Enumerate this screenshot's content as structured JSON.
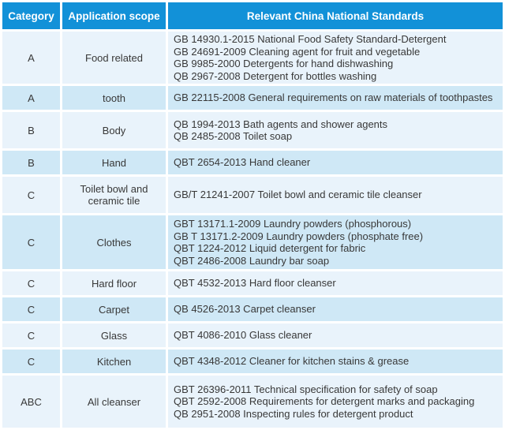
{
  "table": {
    "headers": [
      "Category",
      "Application scope",
      "Relevant China National Standards"
    ],
    "rows": [
      {
        "category": "A",
        "scope": "Food related",
        "standards": [
          "GB 14930.1-2015 National Food Safety Standard-Detergent",
          "GB 24691-2009 Cleaning agent for fruit and vegetable",
          "GB 9985-2000 Detergents for hand dishwashing",
          "QB 2967-2008 Detergent for bottles washing"
        ]
      },
      {
        "category": "A",
        "scope": "tooth",
        "standards": [
          "GB 22115-2008 General requirements on raw materials of toothpastes"
        ]
      },
      {
        "category": "B",
        "scope": "Body",
        "standards": [
          "QB 1994-2013 Bath agents and shower agents",
          "QB 2485-2008 Toilet soap"
        ]
      },
      {
        "category": "B",
        "scope": "Hand",
        "standards": [
          "QBT 2654-2013 Hand cleaner"
        ]
      },
      {
        "category": "C",
        "scope": "Toilet bowl and ceramic tile",
        "standards": [
          "GB/T 21241-2007 Toilet bowl and ceramic tile cleanser"
        ]
      },
      {
        "category": "C",
        "scope": "Clothes",
        "standards": [
          "GBT 13171.1-2009 Laundry powders (phosphorous)",
          "GB T 13171.2-2009 Laundry powders (phosphate free)",
          "QBT 1224-2012 Liquid detergent for fabric",
          "QBT 2486-2008 Laundry bar soap"
        ]
      },
      {
        "category": "C",
        "scope": "Hard floor",
        "standards": [
          "QBT 4532-2013 Hard floor cleanser"
        ]
      },
      {
        "category": "C",
        "scope": "Carpet",
        "standards": [
          "QB 4526-2013 Carpet cleanser"
        ]
      },
      {
        "category": "C",
        "scope": "Glass",
        "standards": [
          "QBT 4086-2010 Glass cleaner"
        ]
      },
      {
        "category": "C",
        "scope": "Kitchen",
        "standards": [
          "QBT 4348-2012 Cleaner for kitchen stains & grease"
        ]
      },
      {
        "category": "ABC",
        "scope": "All cleanser",
        "standards": [
          "GBT 26396-2011 Technical specification for safety of soap",
          "QBT 2592-2008 Requirements for detergent marks and packaging",
          "QB 2951-2008 Inspecting rules for detergent product"
        ]
      }
    ],
    "colors": {
      "header_bg": "#1291d8",
      "header_text": "#ffffff",
      "row_light": "#e9f3fb",
      "row_dark": "#cfe8f6",
      "gap": "#ffffff",
      "text": "#383838"
    }
  }
}
